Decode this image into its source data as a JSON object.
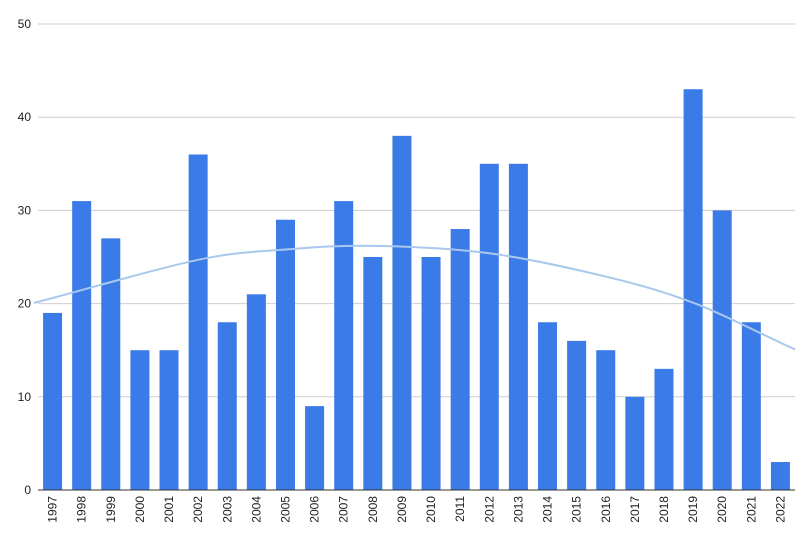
{
  "chart_data": {
    "type": "bar",
    "title": "",
    "xlabel": "",
    "ylabel": "",
    "ylim": [
      0,
      50
    ],
    "y_ticks": [
      "0",
      "10",
      "20",
      "30",
      "40",
      "50"
    ],
    "grid": true,
    "legend": "none",
    "categories": [
      "1997",
      "1998",
      "1999",
      "2000",
      "2001",
      "2002",
      "2003",
      "2004",
      "2005",
      "2006",
      "2007",
      "2008",
      "2009",
      "2010",
      "2011",
      "2012",
      "2013",
      "2014",
      "2015",
      "2016",
      "2017",
      "2018",
      "2019",
      "2020",
      "2021",
      "2022"
    ],
    "series": [
      {
        "values": [
          19,
          31,
          27,
          15,
          15,
          36,
          18,
          21,
          29,
          9,
          31,
          25,
          38,
          25,
          28,
          35,
          35,
          18,
          16,
          15,
          10,
          13,
          43,
          30,
          18,
          3
        ],
        "color": "#3b7be8"
      }
    ],
    "trendline": {
      "type": "polynomial",
      "color": "#a9c8ee",
      "points": [
        {
          "x": "1997",
          "y": 20.6
        },
        {
          "x": "2002",
          "y": 24.7
        },
        {
          "x": "2005",
          "y": 25.8
        },
        {
          "x": "2008",
          "y": 26.2
        },
        {
          "x": "2012",
          "y": 25.4
        },
        {
          "x": "2016",
          "y": 22.9
        },
        {
          "x": "2019",
          "y": 20.1
        },
        {
          "x": "2022",
          "y": 15.8
        }
      ]
    }
  }
}
